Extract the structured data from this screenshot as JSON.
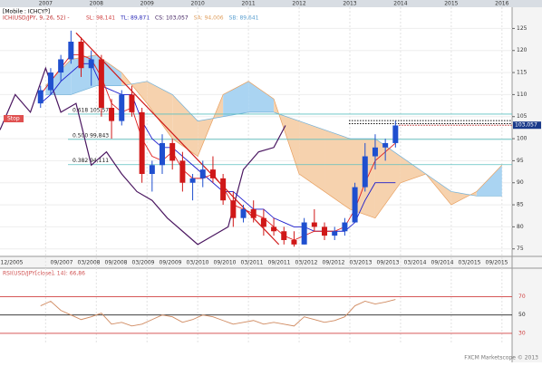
{
  "chart_data": [
    {
      "type": "candlestick",
      "title": "[Mobile : ICHCYP]",
      "indicator": "ICH(USD/JPY, 9, 26, 52) -",
      "stats": [
        {
          "text": "SL: 98,141",
          "color": "#d04040"
        },
        {
          "text": "TL: 89,871",
          "color": "#2c2cb8"
        },
        {
          "text": "CS: 103,057",
          "color": "#402060"
        },
        {
          "text": "SA: 94,006",
          "color": "#e0a060"
        },
        {
          "text": "SB: 89,641",
          "color": "#5a9fd0"
        }
      ],
      "stop_label": "Stop",
      "x": [
        2006.9,
        2007.1,
        2007.3,
        2007.5,
        2007.7,
        2007.9,
        2008.1,
        2008.3,
        2008.5,
        2008.7,
        2008.9,
        2009.1,
        2009.3,
        2009.5,
        2009.7,
        2009.9,
        2010.1,
        2010.3,
        2010.5,
        2010.7,
        2010.9,
        2011.1,
        2011.3,
        2011.5,
        2011.7,
        2011.9,
        2012.1,
        2012.3,
        2012.5,
        2012.7,
        2012.9,
        2013.1,
        2013.3,
        2013.5,
        2013.7,
        2013.9
      ],
      "open": [
        108,
        111,
        115,
        118,
        122,
        116,
        118,
        107,
        104,
        110,
        106,
        92,
        94,
        99,
        95,
        90,
        91,
        93,
        91,
        86,
        82,
        84,
        82,
        80,
        79,
        77,
        76,
        81,
        80,
        78,
        79,
        81,
        89,
        96,
        98,
        99
      ],
      "high": [
        112,
        116,
        119,
        124.5,
        123,
        120,
        119,
        109,
        111,
        112,
        107,
        95,
        101,
        100,
        97,
        92,
        95,
        96,
        92,
        88,
        85,
        86,
        84,
        82,
        80,
        79,
        82,
        84,
        81,
        80,
        82,
        90,
        99,
        101,
        100,
        104
      ],
      "low": [
        107,
        110,
        113,
        117,
        114,
        112,
        105,
        100,
        103,
        105,
        90,
        88,
        92,
        93,
        88,
        86,
        89,
        90,
        85,
        80,
        81,
        81,
        78,
        78,
        76,
        75.5,
        76,
        79,
        77,
        77,
        78,
        81,
        88,
        93,
        95,
        98
      ],
      "close": [
        111,
        115,
        118,
        122,
        116,
        118,
        107,
        104,
        110,
        106,
        92,
        94,
        99,
        95,
        90,
        91,
        93,
        91,
        86,
        82,
        84,
        82,
        80,
        79,
        77,
        76,
        81,
        80,
        78,
        79,
        81,
        89,
        96,
        98,
        99,
        103
      ],
      "up_color": "#1f4fcf",
      "down_color": "#d01818",
      "lines": [
        {
          "color": "#1c1ccc",
          "values": [
            108,
            110,
            113,
            115,
            117,
            117,
            112,
            111,
            110,
            110,
            104,
            100,
            98,
            98,
            96,
            94,
            92,
            90,
            88,
            88,
            86,
            84,
            84,
            82,
            81,
            80,
            80,
            79,
            79,
            79,
            79,
            81,
            86,
            90,
            90,
            90
          ]
        },
        {
          "color": "#e02020",
          "values": [
            110,
            113,
            116,
            119,
            119,
            118,
            114,
            108,
            106,
            107,
            100,
            96,
            95,
            97,
            93,
            91,
            91,
            92,
            89,
            85,
            84,
            83,
            82,
            80,
            78,
            77,
            78,
            79,
            79,
            79,
            80,
            84,
            90,
            95,
            97,
            99
          ]
        }
      ],
      "chikou": {
        "color": "#4a1660",
        "x": [
          2006.1,
          2006.4,
          2006.7,
          2007.0,
          2007.3,
          2007.6,
          2007.9,
          2008.2,
          2008.5,
          2008.8,
          2009.1,
          2009.4,
          2009.7,
          2010.0,
          2010.3,
          2010.6,
          2010.9,
          2011.2,
          2011.5,
          2011.73
        ],
        "values": [
          102,
          110,
          106,
          116,
          106,
          108,
          94,
          97,
          92,
          88,
          86,
          82,
          79,
          76,
          78,
          80,
          93,
          97,
          98,
          103
        ]
      },
      "cloud": {
        "x": [
          2007.0,
          2007.5,
          2008.0,
          2008.5,
          2009.0,
          2009.5,
          2010.0,
          2010.5,
          2011.0,
          2011.5,
          2012.0,
          2012.5,
          2013.0,
          2013.5,
          2014.0,
          2014.5,
          2015.0,
          2015.5,
          2016.0
        ],
        "span_a": [
          112,
          118,
          119,
          115,
          108,
          100,
          96,
          110,
          113,
          109,
          92,
          88,
          84,
          82,
          90,
          92,
          85,
          88,
          94
        ],
        "span_b": [
          110,
          110,
          112,
          112,
          113,
          110,
          104,
          105,
          106,
          106,
          104,
          102,
          100,
          100,
          96,
          92,
          88,
          87,
          87
        ],
        "up_color": "#aad4f2",
        "down_color": "#f6d2ae",
        "a_color": "#e8a060",
        "b_color": "#70b0d8"
      },
      "trendline": {
        "color": "#d01818",
        "x": [
          2007.6,
          2011.6
        ],
        "values": [
          124,
          76
        ]
      },
      "fib": [
        {
          "label": "0.618 105,575",
          "value": 105.575
        },
        {
          "label": "0.500 99,843",
          "value": 99.843
        },
        {
          "label": "0.382 94,111",
          "value": 94.111
        }
      ],
      "fib_color": "#5cc0c0",
      "resistance": [
        104.1,
        103.4
      ],
      "last_price": {
        "value": 103.057,
        "label": "103,057"
      },
      "xlim": [
        2006.1,
        2016.2
      ],
      "ylim": [
        73.3,
        129.4
      ],
      "yticks": [
        75,
        80,
        85,
        90,
        95,
        100,
        105,
        110,
        115,
        120,
        125
      ],
      "xticks": [
        2007,
        2008,
        2009,
        2010,
        2011,
        2012,
        2013,
        2014,
        2015,
        2016
      ],
      "date_labels": [
        "12/2005",
        "09/2007",
        "03/2008",
        "09/2008",
        "03/2009",
        "09/2009",
        "03/2010",
        "09/2010",
        "03/2011",
        "09/2011",
        "03/2012",
        "09/2012",
        "03/2013",
        "09/2013",
        "03/2014",
        "09/2014",
        "03/2015",
        "09/2015"
      ],
      "grid": true
    },
    {
      "type": "line",
      "title": "RSI(USD/JPY[close], 14): 66,86",
      "color": "#d08a60",
      "values": [
        60,
        65,
        55,
        50,
        45,
        48,
        52,
        40,
        42,
        38,
        40,
        45,
        50,
        48,
        42,
        45,
        50,
        48,
        44,
        40,
        42,
        44,
        40,
        42,
        40,
        38,
        48,
        45,
        42,
        44,
        48,
        60,
        65,
        62,
        64,
        66.86
      ],
      "ylim": [
        26,
        101
      ],
      "yticks": [
        30,
        50,
        70
      ],
      "level_colors": [
        "#d04040",
        "#222222",
        "#d04040"
      ]
    }
  ],
  "footer": "FXCM Marketscope © 2013"
}
